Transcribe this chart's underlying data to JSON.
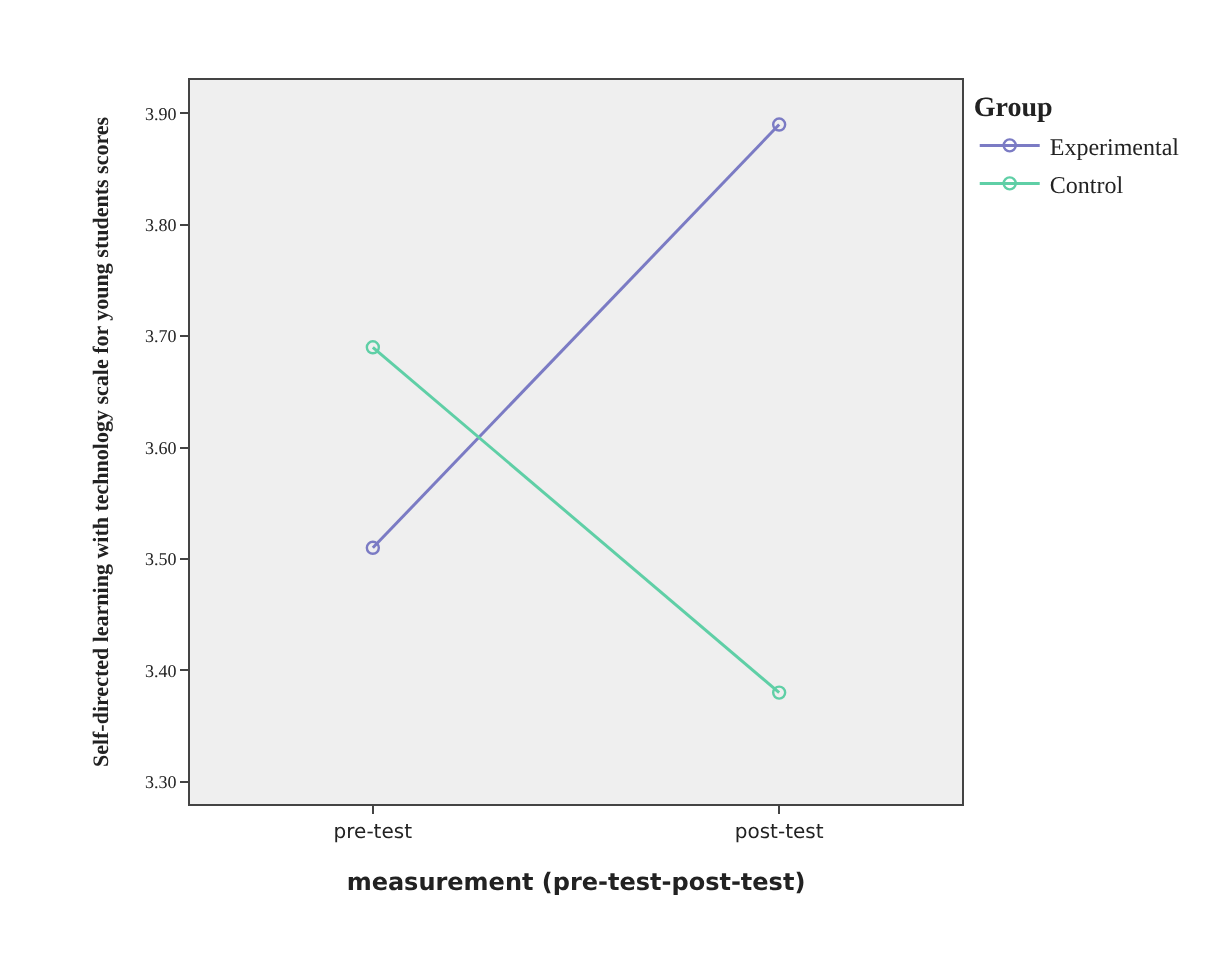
{
  "chart_data": {
    "type": "line",
    "categories": [
      "pre-test",
      "post-test"
    ],
    "xlabel": "measurement (pre-test-post-test)",
    "ylabel": "Self-directed learning with technology scale for young students scores",
    "legend_title": "Group",
    "legend": "top right",
    "marker": "circle",
    "grid": false,
    "ylim": [
      3.28,
      3.93
    ],
    "yticks": [
      {
        "value": 3.3,
        "label": "3.30"
      },
      {
        "value": 3.4,
        "label": "3.40"
      },
      {
        "value": 3.5,
        "label": "3.50"
      },
      {
        "value": 3.6,
        "label": "3.60"
      },
      {
        "value": 3.7,
        "label": "3.70"
      },
      {
        "value": 3.8,
        "label": "3.80"
      },
      {
        "value": 3.9,
        "label": "3.90"
      }
    ],
    "series": [
      {
        "name": "Experimental",
        "color": "#7b7bc4",
        "values": [
          3.51,
          3.89
        ]
      },
      {
        "name": "Control",
        "color": "#5fcfa6",
        "values": [
          3.69,
          3.38
        ]
      }
    ]
  }
}
